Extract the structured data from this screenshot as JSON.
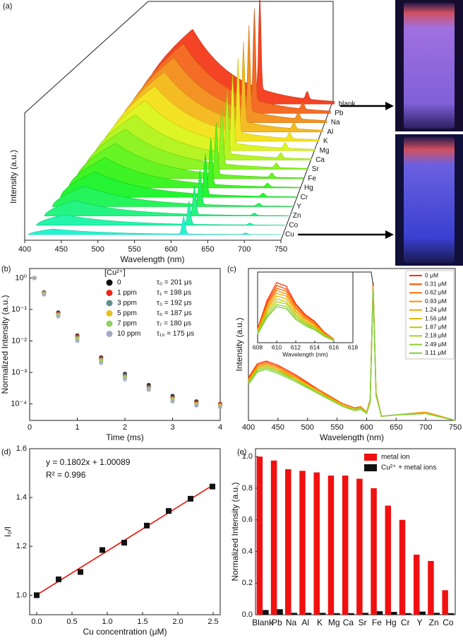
{
  "chart_data": [
    {
      "type": "waterfall",
      "panel": "(a)",
      "x_label": "Wavelength (nm)",
      "y_label": "Intensity (a.u.)",
      "xlim": [
        400,
        750
      ],
      "xticks": [
        400,
        450,
        500,
        550,
        600,
        650,
        700,
        750
      ],
      "categories": [
        "blank",
        "Pb",
        "Na",
        "Al",
        "K",
        "Mg",
        "Ca",
        "Sr",
        "Fe",
        "Hg",
        "Cr",
        "Y",
        "Zn",
        "Co",
        "Cu"
      ]
    },
    {
      "type": "scatter",
      "panel": "(b)",
      "x_label": "Time (ms)",
      "y_label": "Normalized Intensity (a.u.)",
      "log_y": true,
      "legend_title": "[Cu²⁺]",
      "xlim": [
        0,
        4
      ],
      "xticks": [
        0,
        1,
        2,
        3,
        4
      ],
      "ylim": [
        3e-05,
        2
      ],
      "yticks": [
        {
          "value": 1,
          "label": "10⁰"
        },
        {
          "value": 0.1,
          "label": "10⁻¹"
        },
        {
          "value": 0.01,
          "label": "10⁻²"
        },
        {
          "value": 0.001,
          "label": "10⁻³"
        },
        {
          "value": 0.0001,
          "label": "10⁻⁴"
        }
      ],
      "x": [
        0.1,
        0.3,
        0.6,
        1.0,
        1.5,
        2.0,
        2.5,
        3.0,
        3.5,
        4.0
      ],
      "series": [
        {
          "name": "0",
          "lifetime": "τ₀ = 201 μs",
          "color": "#111111",
          "values": [
            1,
            0.35,
            0.08,
            0.015,
            0.003,
            0.0009,
            0.0004,
            0.00018,
            0.00012,
            0.0001
          ]
        },
        {
          "name": "1 ppm",
          "lifetime": "τ₁ = 198 μs",
          "color": "#e8251c",
          "values": [
            1,
            0.34,
            0.075,
            0.014,
            0.0028,
            0.0008,
            0.00035,
            0.00016,
            0.00011,
            0.0001
          ]
        },
        {
          "name": "3 ppm",
          "lifetime": "τ₃ = 192 μs",
          "color": "#5f8f8f",
          "values": [
            1,
            0.33,
            0.07,
            0.013,
            0.0026,
            0.0008,
            0.00033,
            0.00015,
            0.0001,
            9e-05
          ]
        },
        {
          "name": "5 ppm",
          "lifetime": "τ₅ = 187 μs",
          "color": "#e8c020",
          "values": [
            1,
            0.32,
            0.068,
            0.012,
            0.0024,
            0.0007,
            0.0003,
            0.00014,
            0.0001,
            9e-05
          ]
        },
        {
          "name": "7 ppm",
          "lifetime": "τ₇ = 180 μs",
          "color": "#8fd060",
          "values": [
            1,
            0.31,
            0.065,
            0.011,
            0.0022,
            0.0007,
            0.0003,
            0.00013,
            9e-05,
            8e-05
          ]
        },
        {
          "name": "10 ppm",
          "lifetime": "τ₁₀ = 175 μs",
          "color": "#a8a8c8",
          "values": [
            1,
            0.3,
            0.06,
            0.01,
            0.002,
            0.0006,
            0.00028,
            0.00012,
            9e-05,
            8e-05
          ]
        }
      ]
    },
    {
      "type": "line",
      "panel": "(c)",
      "x_label": "Wavelength (nm)",
      "y_label": "Intensity (a.u.)",
      "xlim": [
        400,
        750
      ],
      "xticks": [
        400,
        450,
        500,
        550,
        600,
        650,
        700,
        750
      ],
      "ylim": [
        0,
        1.1
      ],
      "x": [
        400,
        415,
        430,
        450,
        480,
        520,
        560,
        580,
        590,
        600,
        606,
        611,
        616,
        625,
        650,
        700,
        750
      ],
      "inset": {
        "x_label": "Wavelength (nm)",
        "xlim": [
          608,
          618
        ],
        "xticks": [
          608,
          610,
          612,
          614,
          616,
          618
        ],
        "ylim": [
          0,
          1
        ],
        "x": [
          608,
          609,
          610,
          611,
          612,
          613,
          614,
          615,
          616
        ]
      },
      "series": [
        {
          "name": "0 μM",
          "color": "#ff2a00",
          "values": [
            0.31,
            0.41,
            0.43,
            0.4,
            0.33,
            0.22,
            0.12,
            0.09,
            0.1,
            0.06,
            0.15,
            1.0,
            0.2,
            0.03,
            0.04,
            0.06,
            0.0
          ],
          "inset_values": [
            0.2,
            0.6,
            0.85,
            0.8,
            0.55,
            0.4,
            0.3,
            0.15,
            0.05
          ]
        },
        {
          "name": "0.31 μM",
          "color": "#ff4a00",
          "values": [
            0.3,
            0.4,
            0.42,
            0.39,
            0.32,
            0.22,
            0.12,
            0.09,
            0.1,
            0.06,
            0.15,
            0.99,
            0.2,
            0.03,
            0.04,
            0.06,
            0.0
          ],
          "inset_values": [
            0.19,
            0.57,
            0.81,
            0.76,
            0.53,
            0.38,
            0.29,
            0.14,
            0.05
          ]
        },
        {
          "name": "0.62 μM",
          "color": "#ff6a00",
          "values": [
            0.3,
            0.4,
            0.42,
            0.39,
            0.32,
            0.21,
            0.12,
            0.09,
            0.1,
            0.06,
            0.15,
            0.98,
            0.2,
            0.03,
            0.04,
            0.06,
            0.0
          ],
          "inset_values": [
            0.18,
            0.55,
            0.77,
            0.73,
            0.5,
            0.36,
            0.27,
            0.14,
            0.05
          ]
        },
        {
          "name": "0.93 μM",
          "color": "#ff8a00",
          "values": [
            0.29,
            0.39,
            0.41,
            0.38,
            0.31,
            0.21,
            0.11,
            0.08,
            0.1,
            0.06,
            0.15,
            0.97,
            0.19,
            0.03,
            0.04,
            0.06,
            0.0
          ],
          "inset_values": [
            0.17,
            0.52,
            0.74,
            0.69,
            0.48,
            0.35,
            0.26,
            0.13,
            0.04
          ]
        },
        {
          "name": "1.24 μM",
          "color": "#f5a300",
          "values": [
            0.29,
            0.38,
            0.4,
            0.37,
            0.31,
            0.21,
            0.11,
            0.08,
            0.09,
            0.06,
            0.14,
            0.97,
            0.19,
            0.03,
            0.04,
            0.06,
            0.0
          ],
          "inset_values": [
            0.16,
            0.49,
            0.7,
            0.66,
            0.45,
            0.33,
            0.25,
            0.12,
            0.04
          ]
        },
        {
          "name": "1.56 μM",
          "color": "#e0b800",
          "values": [
            0.28,
            0.38,
            0.4,
            0.37,
            0.3,
            0.2,
            0.11,
            0.08,
            0.09,
            0.06,
            0.14,
            0.96,
            0.19,
            0.03,
            0.04,
            0.05,
            0.0
          ],
          "inset_values": [
            0.16,
            0.47,
            0.66,
            0.62,
            0.43,
            0.31,
            0.23,
            0.12,
            0.04
          ]
        },
        {
          "name": "1.87 μM",
          "color": "#c8c800",
          "values": [
            0.28,
            0.37,
            0.39,
            0.36,
            0.3,
            0.2,
            0.11,
            0.08,
            0.09,
            0.05,
            0.14,
            0.96,
            0.18,
            0.03,
            0.04,
            0.05,
            0.0
          ],
          "inset_values": [
            0.15,
            0.44,
            0.62,
            0.58,
            0.4,
            0.29,
            0.22,
            0.11,
            0.04
          ]
        },
        {
          "name": "2.18 μM",
          "color": "#a8d020",
          "values": [
            0.27,
            0.37,
            0.39,
            0.36,
            0.29,
            0.2,
            0.1,
            0.08,
            0.09,
            0.05,
            0.14,
            0.95,
            0.18,
            0.03,
            0.04,
            0.05,
            0.0
          ],
          "inset_values": [
            0.14,
            0.41,
            0.58,
            0.55,
            0.38,
            0.27,
            0.21,
            0.1,
            0.03
          ]
        },
        {
          "name": "2.49 μM",
          "color": "#90d030",
          "values": [
            0.27,
            0.36,
            0.38,
            0.35,
            0.29,
            0.19,
            0.1,
            0.07,
            0.09,
            0.05,
            0.13,
            0.95,
            0.18,
            0.03,
            0.04,
            0.05,
            0.0
          ],
          "inset_values": [
            0.13,
            0.38,
            0.54,
            0.51,
            0.35,
            0.26,
            0.19,
            0.1,
            0.03
          ]
        },
        {
          "name": "3.11 μM",
          "color": "#7fd040",
          "values": [
            0.26,
            0.35,
            0.37,
            0.34,
            0.28,
            0.19,
            0.1,
            0.07,
            0.08,
            0.05,
            0.13,
            0.94,
            0.18,
            0.03,
            0.04,
            0.05,
            0.0
          ],
          "inset_values": [
            0.12,
            0.36,
            0.51,
            0.48,
            0.33,
            0.24,
            0.18,
            0.09,
            0.03
          ]
        }
      ]
    },
    {
      "type": "scatter",
      "panel": "(d)",
      "x_label": "Cu concentration (μM)",
      "y_label": "I₀/I",
      "equation": "y = 0.1802x + 1.00089",
      "r_squared": "R² = 0.996",
      "xlim": [
        -0.1,
        2.6
      ],
      "xticks": [
        {
          "value": 0,
          "label": "0.0"
        },
        0.5,
        {
          "value": 1,
          "label": "1.0"
        },
        1.5,
        {
          "value": 2,
          "label": "2.0"
        },
        2.5
      ],
      "ylim": [
        0.92,
        1.6
      ],
      "yticks": [
        {
          "value": 1,
          "label": "1.0"
        },
        1.2,
        1.4,
        1.6
      ],
      "x": [
        0,
        0.31,
        0.62,
        0.93,
        1.24,
        1.56,
        1.87,
        2.18,
        2.49
      ],
      "values": [
        1.0,
        1.065,
        1.095,
        1.185,
        1.215,
        1.285,
        1.345,
        1.395,
        1.445
      ],
      "color": "#111111",
      "fit": {
        "x": [
          0,
          2.49
        ],
        "values": [
          1.00089,
          1.44959
        ],
        "color": "#e8251c"
      }
    },
    {
      "type": "bar",
      "panel": "(e)",
      "y_label": "Normalized Intensity (a.u.)",
      "ylim": [
        0,
        1.05
      ],
      "yticks": [
        {
          "value": 0,
          "label": "0.0"
        },
        0.2,
        0.4,
        0.6,
        0.8,
        {
          "value": 1,
          "label": "1.0"
        }
      ],
      "categories": [
        "Blank",
        "Pb",
        "Na",
        "Al",
        "K",
        "Mg",
        "Ca",
        "Sr",
        "Fe",
        "Hg",
        "Cr",
        "Y",
        "Zn",
        "Co"
      ],
      "series": [
        {
          "name": "metal ion",
          "color": "#f01010",
          "values": [
            1.0,
            0.975,
            0.92,
            0.91,
            0.9,
            0.88,
            0.88,
            0.86,
            0.8,
            0.69,
            0.6,
            0.38,
            0.34,
            0.155
          ]
        },
        {
          "name": "Cu²⁺ + metal ions",
          "color": "#111111",
          "values": [
            0.03,
            0.035,
            0.012,
            0.012,
            0.012,
            0.01,
            0.01,
            0.012,
            0.022,
            0.018,
            0.01,
            0.02,
            0.012,
            0.01
          ]
        }
      ]
    }
  ]
}
